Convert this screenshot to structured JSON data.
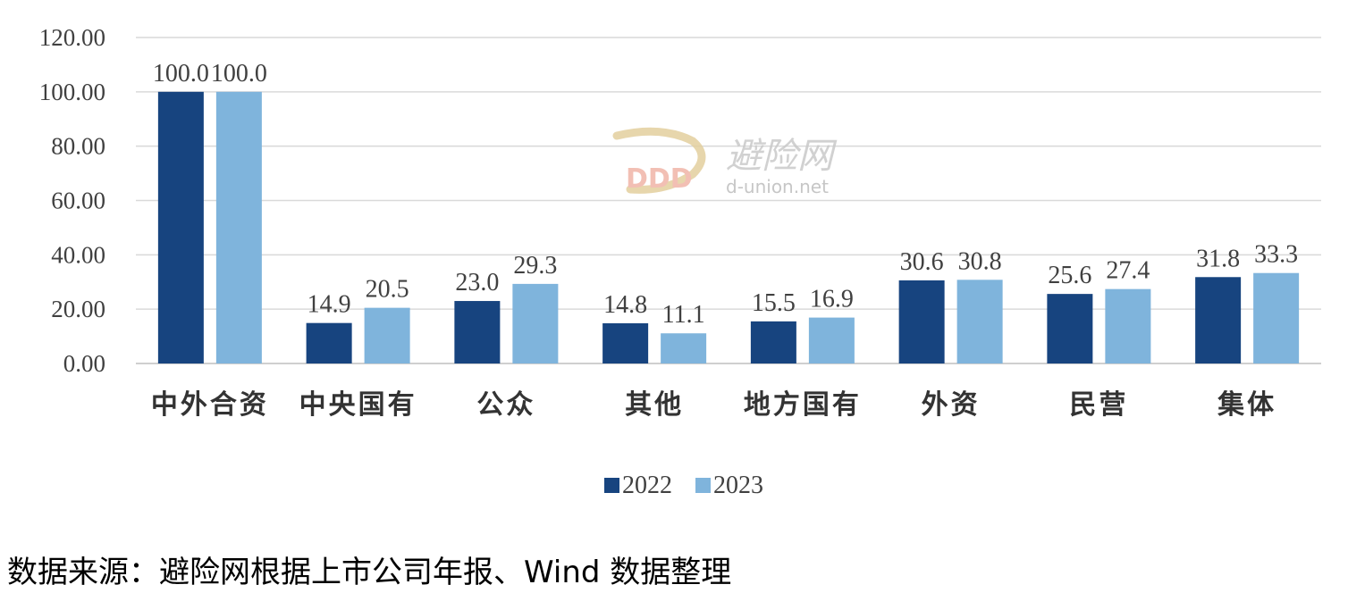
{
  "chart_data": {
    "type": "bar",
    "categories": [
      "中外合资",
      "中央国有",
      "公众",
      "其他",
      "地方国有",
      "外资",
      "民营",
      "集体"
    ],
    "series": [
      {
        "name": "2022",
        "color": "#17447f",
        "values": [
          100.0,
          14.9,
          23.0,
          14.8,
          15.5,
          30.6,
          25.6,
          31.8
        ]
      },
      {
        "name": "2023",
        "color": "#7fb4dc",
        "values": [
          100.0,
          20.5,
          29.3,
          11.1,
          16.9,
          30.8,
          27.4,
          33.3
        ]
      }
    ],
    "data_labels": [
      [
        "100.0",
        "14.9",
        "23.0",
        "14.8",
        "15.5",
        "30.6",
        "25.6",
        "31.8"
      ],
      [
        "100.0",
        "20.5",
        "29.3",
        "11.1",
        "16.9",
        "30.8",
        "27.4",
        "33.3"
      ]
    ],
    "y_ticks": [
      "0.00",
      "20.00",
      "40.00",
      "60.00",
      "80.00",
      "100.00",
      "120.00"
    ],
    "ylim": [
      0,
      120
    ],
    "grid": true,
    "legend_position": "bottom-center",
    "title": "",
    "xlabel": "",
    "ylabel": ""
  },
  "watermark": {
    "name": "避险网",
    "site": "d-union.net"
  },
  "source_note": "数据来源：避险网根据上市公司年报、Wind 数据整理"
}
